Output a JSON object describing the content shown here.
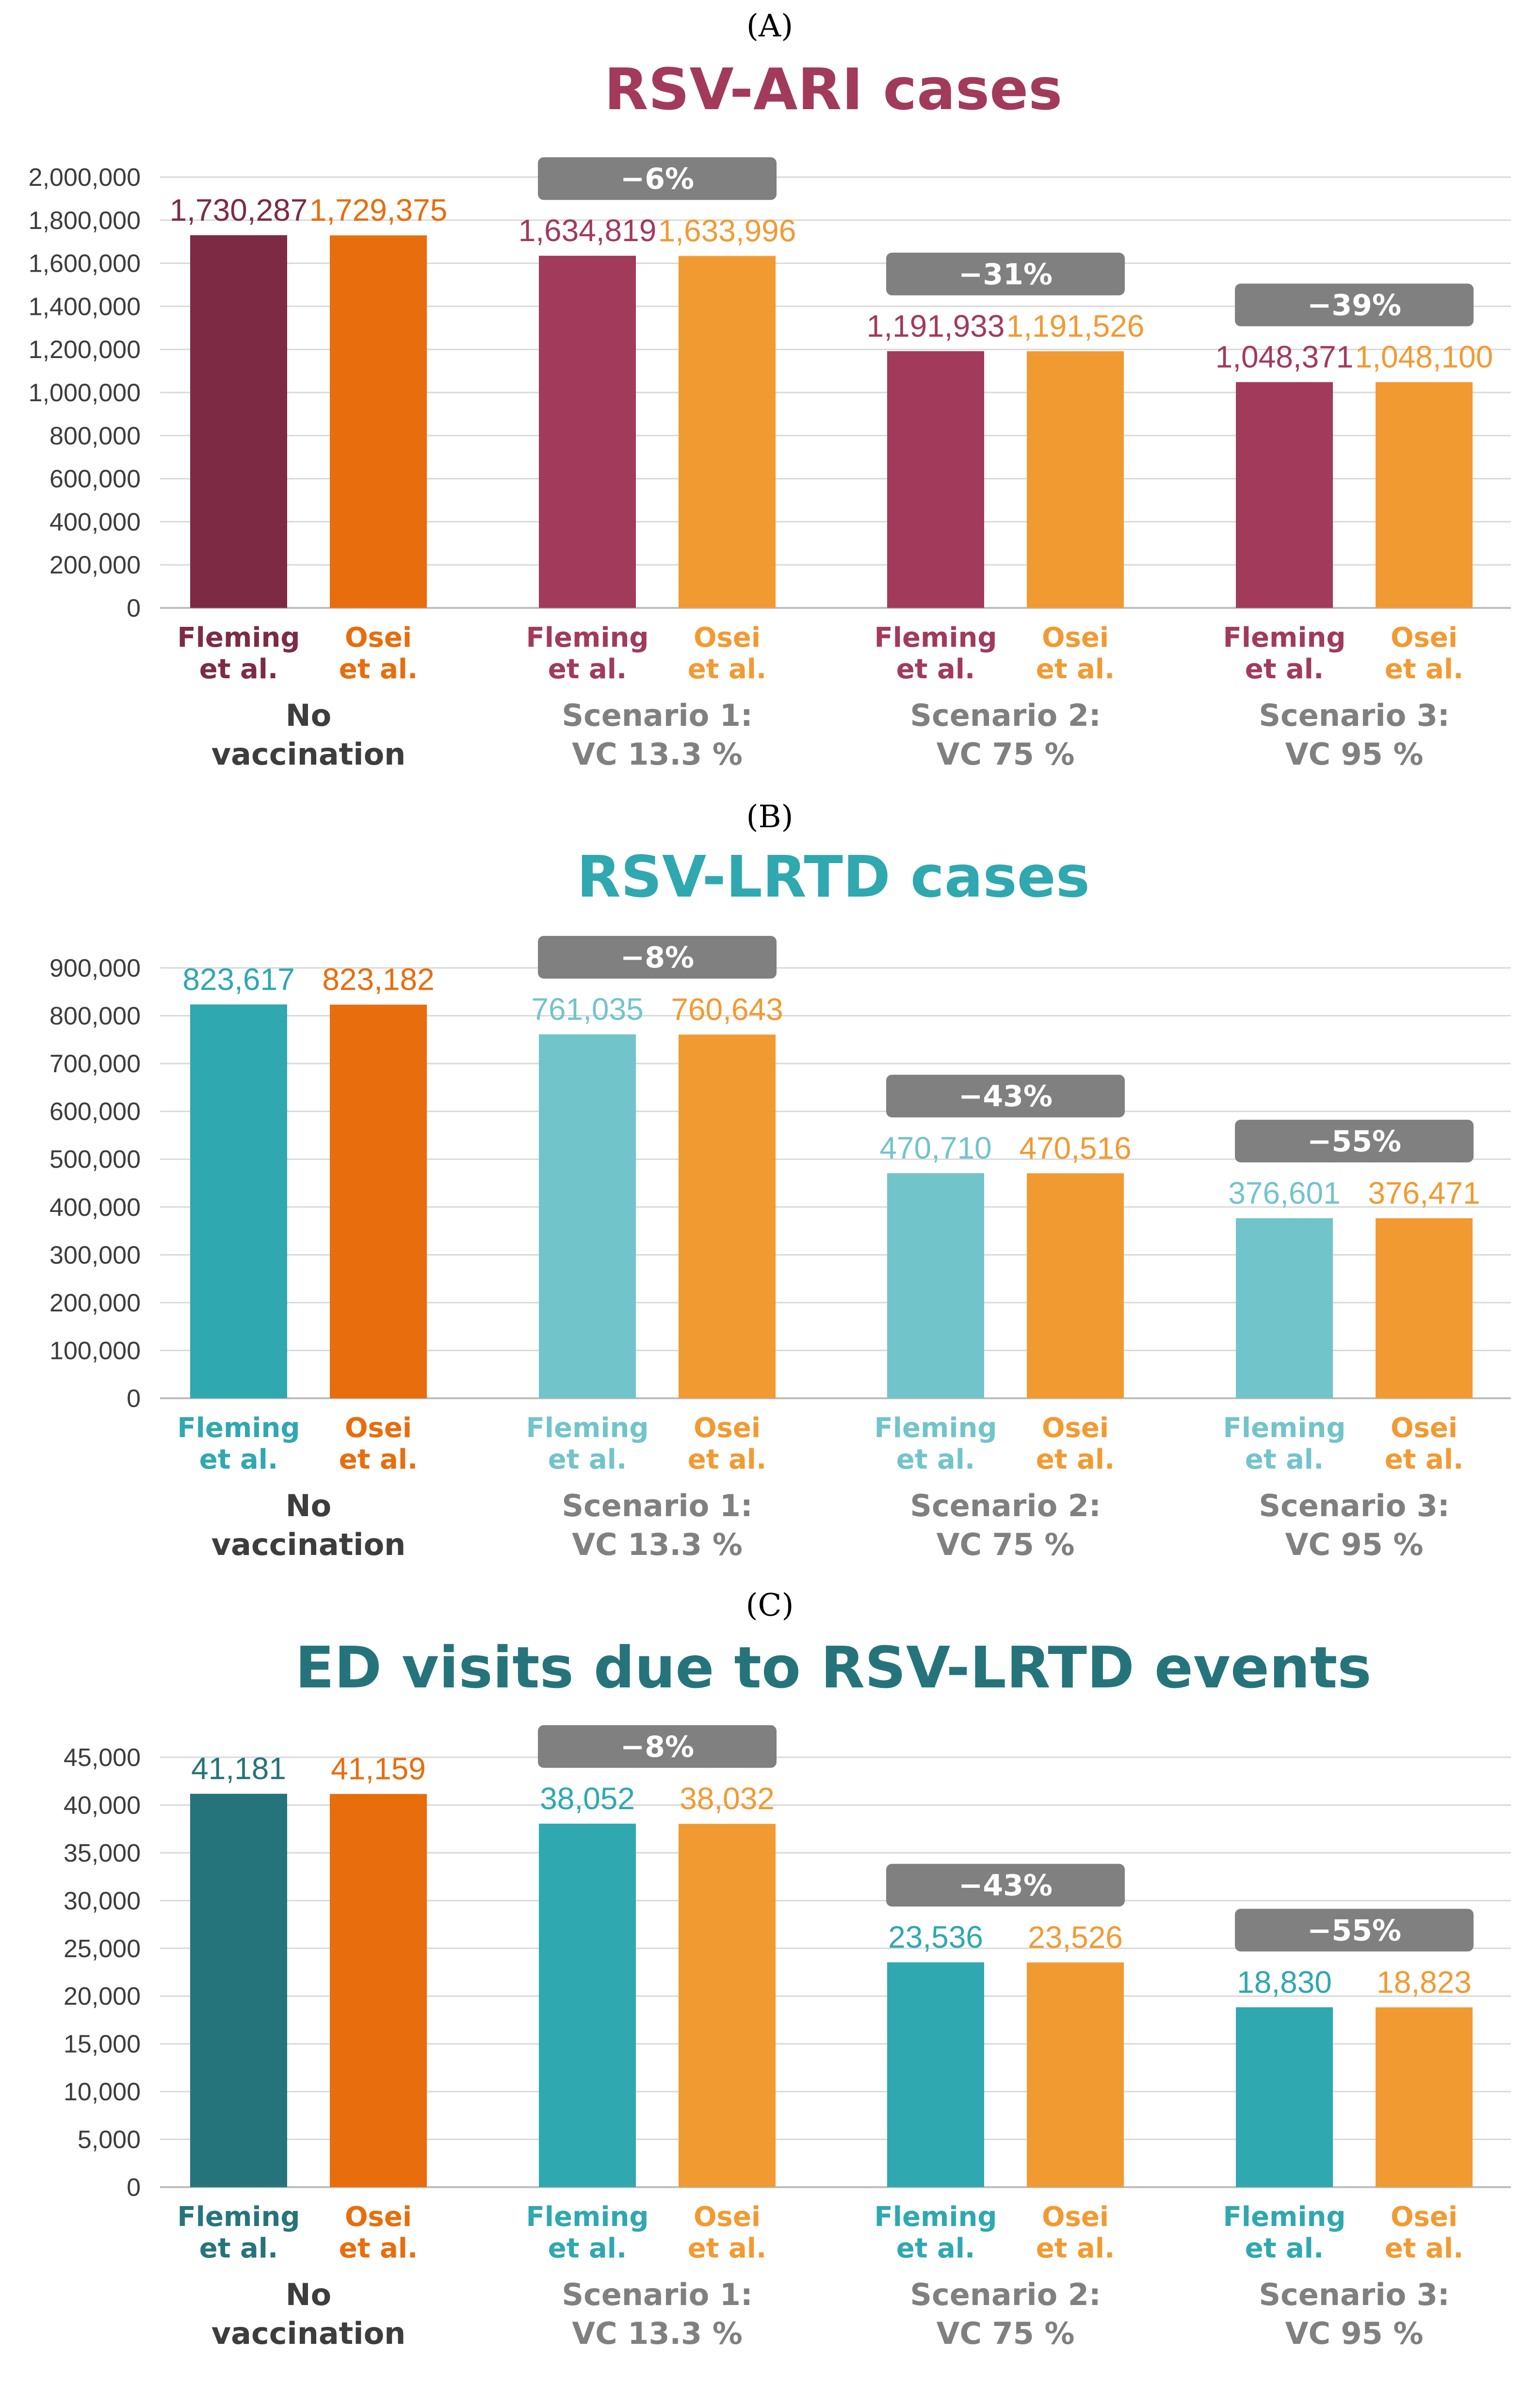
{
  "figure": {
    "panels": [
      {
        "label": "(A)",
        "title": "RSV-ARI cases"
      },
      {
        "label": "(B)",
        "title": "RSV-LRTD cases"
      },
      {
        "label": "(C)",
        "title": "ED visits due to RSV-LRTD events"
      }
    ]
  },
  "colors": {
    "badge": "#808080",
    "tick_text": "#3d3d3d",
    "group_text": "#3d3d3d",
    "group_text_muted": "#808080"
  },
  "chart_data": [
    {
      "type": "bar",
      "title": "RSV-ARI cases",
      "title_color": "#a23a5b",
      "ylim": [
        0,
        2000000
      ],
      "yticks": [
        "0",
        "200,000",
        "400,000",
        "600,000",
        "800,000",
        "1,000,000",
        "1,200,000",
        "1,400,000",
        "1,600,000",
        "1,800,000",
        "2,000,000"
      ],
      "grid": true,
      "categories": [
        {
          "name_line1": "No",
          "name_line2": "vaccination",
          "muted": false
        },
        {
          "name_line1": "Scenario 1:",
          "name_line2": "VC 13.3 %",
          "muted": true
        },
        {
          "name_line1": "Scenario 2:",
          "name_line2": "VC 75 %",
          "muted": true
        },
        {
          "name_line1": "Scenario 3:",
          "name_line2": "VC 95 %",
          "muted": true
        }
      ],
      "series": [
        {
          "name_line1": "Fleming",
          "name_line2": "et al.",
          "values": [
            1730287,
            1634819,
            1191933,
            1048371
          ],
          "labels": [
            "1,730,287",
            "1,634,819",
            "1,191,933",
            "1,048,371"
          ],
          "colors": [
            "#7d2b45",
            "#a23a5b",
            "#a23a5b",
            "#a23a5b"
          ]
        },
        {
          "name_line1": "Osei",
          "name_line2": "et al.",
          "values": [
            1729375,
            1633996,
            1191526,
            1048100
          ],
          "labels": [
            "1,729,375",
            "1,633,996",
            "1,191,526",
            "1,048,100"
          ],
          "colors": [
            "#e86d0c",
            "#f29a32",
            "#f29a32",
            "#f29a32"
          ]
        }
      ],
      "reductions": [
        "",
        "−6%",
        "−31%",
        "−39%"
      ]
    },
    {
      "type": "bar",
      "title": "RSV-LRTD cases",
      "title_color": "#2fa8b0",
      "ylim": [
        0,
        900000
      ],
      "yticks": [
        "0",
        "100,000",
        "200,000",
        "300,000",
        "400,000",
        "500,000",
        "600,000",
        "700,000",
        "800,000",
        "900,000"
      ],
      "grid": true,
      "categories": [
        {
          "name_line1": "No",
          "name_line2": "vaccination",
          "muted": false
        },
        {
          "name_line1": "Scenario 1:",
          "name_line2": "VC 13.3 %",
          "muted": true
        },
        {
          "name_line1": "Scenario 2:",
          "name_line2": "VC 75 %",
          "muted": true
        },
        {
          "name_line1": "Scenario 3:",
          "name_line2": "VC 95 %",
          "muted": true
        }
      ],
      "series": [
        {
          "name_line1": "Fleming",
          "name_line2": "et al.",
          "values": [
            823617,
            761035,
            470710,
            376601
          ],
          "labels": [
            "823,617",
            "761,035",
            "470,710",
            "376,601"
          ],
          "colors": [
            "#2fa8b0",
            "#72c4cb",
            "#72c4cb",
            "#72c4cb"
          ]
        },
        {
          "name_line1": "Osei",
          "name_line2": "et al.",
          "values": [
            823182,
            760643,
            470516,
            376471
          ],
          "labels": [
            "823,182",
            "760,643",
            "470,516",
            "376,471"
          ],
          "colors": [
            "#e86d0c",
            "#f29a32",
            "#f29a32",
            "#f29a32"
          ]
        }
      ],
      "reductions": [
        "",
        "−8%",
        "−43%",
        "−55%"
      ]
    },
    {
      "type": "bar",
      "title": "ED visits due to RSV-LRTD events",
      "title_color": "#26747b",
      "ylim": [
        0,
        45000
      ],
      "yticks": [
        "0",
        "5,000",
        "10,000",
        "15,000",
        "20,000",
        "25,000",
        "30,000",
        "35,000",
        "40,000",
        "45,000"
      ],
      "grid": true,
      "categories": [
        {
          "name_line1": "No",
          "name_line2": "vaccination",
          "muted": false
        },
        {
          "name_line1": "Scenario 1:",
          "name_line2": "VC 13.3 %",
          "muted": true
        },
        {
          "name_line1": "Scenario 2:",
          "name_line2": "VC 75 %",
          "muted": true
        },
        {
          "name_line1": "Scenario 3:",
          "name_line2": "VC 95 %",
          "muted": true
        }
      ],
      "series": [
        {
          "name_line1": "Fleming",
          "name_line2": "et al.",
          "values": [
            41181,
            38052,
            23536,
            18830
          ],
          "labels": [
            "41,181",
            "38,052",
            "23,536",
            "18,830"
          ],
          "colors": [
            "#26747b",
            "#2fa8b0",
            "#2fa8b0",
            "#2fa8b0"
          ]
        },
        {
          "name_line1": "Osei",
          "name_line2": "et al.",
          "values": [
            41159,
            38032,
            23526,
            18823
          ],
          "labels": [
            "41,159",
            "38,032",
            "23,526",
            "18,823"
          ],
          "colors": [
            "#e86d0c",
            "#f29a32",
            "#f29a32",
            "#f29a32"
          ]
        }
      ],
      "reductions": [
        "",
        "−8%",
        "−43%",
        "−55%"
      ]
    }
  ]
}
